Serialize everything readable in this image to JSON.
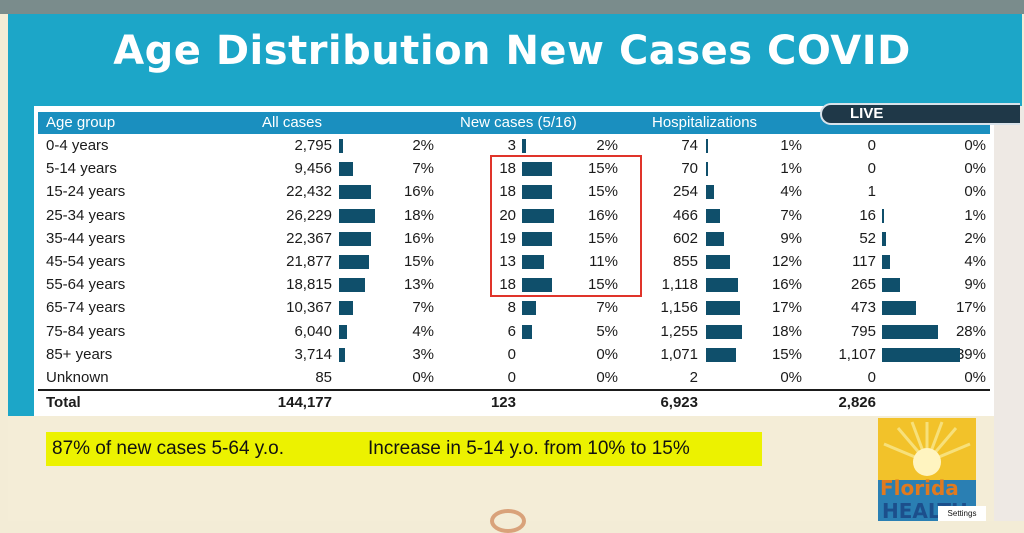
{
  "title": "Age Distribution New Cases COVID",
  "live_badge": "LIVE",
  "table": {
    "headers": {
      "age_group": "Age group",
      "all_cases": "All cases",
      "new_cases": "New cases (5/16)",
      "hospitalizations": "Hospitalizations"
    },
    "rows": [
      {
        "age": "0-4 years",
        "all": "2,795",
        "all_pct": "2%",
        "all_frac": 0.02,
        "new": "3",
        "new_pct": "2%",
        "new_frac": 0.02,
        "hosp": "74",
        "hosp_pct": "1%",
        "hosp_frac": 0.01,
        "deaths": "0",
        "deaths_pct": "0%",
        "deaths_frac": 0.0
      },
      {
        "age": "5-14 years",
        "all": "9,456",
        "all_pct": "7%",
        "all_frac": 0.07,
        "new": "18",
        "new_pct": "15%",
        "new_frac": 0.15,
        "hosp": "70",
        "hosp_pct": "1%",
        "hosp_frac": 0.01,
        "deaths": "0",
        "deaths_pct": "0%",
        "deaths_frac": 0.0
      },
      {
        "age": "15-24 years",
        "all": "22,432",
        "all_pct": "16%",
        "all_frac": 0.16,
        "new": "18",
        "new_pct": "15%",
        "new_frac": 0.15,
        "hosp": "254",
        "hosp_pct": "4%",
        "hosp_frac": 0.04,
        "deaths": "1",
        "deaths_pct": "0%",
        "deaths_frac": 0.0
      },
      {
        "age": "25-34 years",
        "all": "26,229",
        "all_pct": "18%",
        "all_frac": 0.18,
        "new": "20",
        "new_pct": "16%",
        "new_frac": 0.16,
        "hosp": "466",
        "hosp_pct": "7%",
        "hosp_frac": 0.07,
        "deaths": "16",
        "deaths_pct": "1%",
        "deaths_frac": 0.01
      },
      {
        "age": "35-44 years",
        "all": "22,367",
        "all_pct": "16%",
        "all_frac": 0.16,
        "new": "19",
        "new_pct": "15%",
        "new_frac": 0.15,
        "hosp": "602",
        "hosp_pct": "9%",
        "hosp_frac": 0.09,
        "deaths": "52",
        "deaths_pct": "2%",
        "deaths_frac": 0.02
      },
      {
        "age": "45-54 years",
        "all": "21,877",
        "all_pct": "15%",
        "all_frac": 0.15,
        "new": "13",
        "new_pct": "11%",
        "new_frac": 0.11,
        "hosp": "855",
        "hosp_pct": "12%",
        "hosp_frac": 0.12,
        "deaths": "117",
        "deaths_pct": "4%",
        "deaths_frac": 0.04
      },
      {
        "age": "55-64 years",
        "all": "18,815",
        "all_pct": "13%",
        "all_frac": 0.13,
        "new": "18",
        "new_pct": "15%",
        "new_frac": 0.15,
        "hosp": "1,118",
        "hosp_pct": "16%",
        "hosp_frac": 0.16,
        "deaths": "265",
        "deaths_pct": "9%",
        "deaths_frac": 0.09
      },
      {
        "age": "65-74 years",
        "all": "10,367",
        "all_pct": "7%",
        "all_frac": 0.07,
        "new": "8",
        "new_pct": "7%",
        "new_frac": 0.07,
        "hosp": "1,156",
        "hosp_pct": "17%",
        "hosp_frac": 0.17,
        "deaths": "473",
        "deaths_pct": "17%",
        "deaths_frac": 0.17
      },
      {
        "age": "75-84 years",
        "all": "6,040",
        "all_pct": "4%",
        "all_frac": 0.04,
        "new": "6",
        "new_pct": "5%",
        "new_frac": 0.05,
        "hosp": "1,255",
        "hosp_pct": "18%",
        "hosp_frac": 0.18,
        "deaths": "795",
        "deaths_pct": "28%",
        "deaths_frac": 0.28
      },
      {
        "age": "85+ years",
        "all": "3,714",
        "all_pct": "3%",
        "all_frac": 0.03,
        "new": "0",
        "new_pct": "0%",
        "new_frac": 0.0,
        "hosp": "1,071",
        "hosp_pct": "15%",
        "hosp_frac": 0.15,
        "deaths": "1,107",
        "deaths_pct": "39%",
        "deaths_frac": 0.39
      },
      {
        "age": "Unknown",
        "all": "85",
        "all_pct": "0%",
        "all_frac": 0.0,
        "new": "0",
        "new_pct": "0%",
        "new_frac": 0.0,
        "hosp": "2",
        "hosp_pct": "0%",
        "hosp_frac": 0.0,
        "deaths": "0",
        "deaths_pct": "0%",
        "deaths_frac": 0.0
      }
    ],
    "total": {
      "label": "Total",
      "all": "144,177",
      "new": "123",
      "hosp": "6,923",
      "deaths": "2,826"
    }
  },
  "banner": {
    "left": "87% of new cases 5-64 y.o.",
    "right": "Increase in 5-14 y.o. from 10% to 15%"
  },
  "logo": {
    "line1": "Florida",
    "line2": "HEALTH"
  },
  "settings_label": "Settings",
  "colors": {
    "header_blue": "#1ca6c8",
    "bar": "#0f4f6b",
    "highlight": "#e0342a",
    "banner": "#ecf200"
  }
}
